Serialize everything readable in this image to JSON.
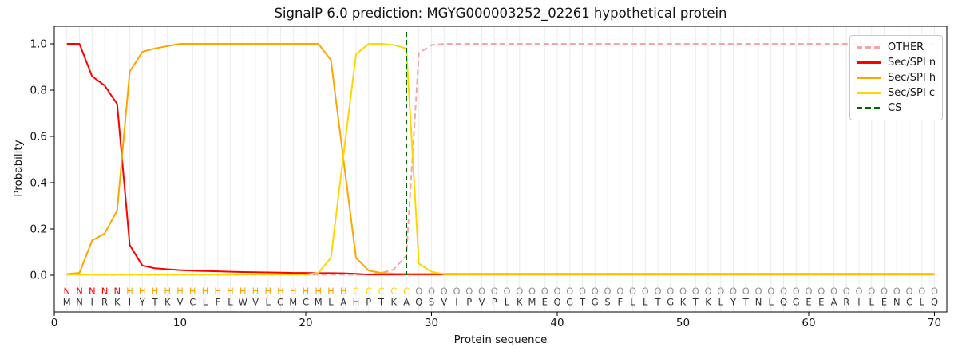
{
  "title": "SignalP 6.0 prediction: MGYG000003252_02261 hypothetical protein",
  "chart_data": {
    "type": "line",
    "title": "SignalP 6.0 prediction: MGYG000003252_02261 hypothetical protein",
    "xlabel": "Protein sequence",
    "ylabel": "Probability",
    "xlim": [
      0,
      71
    ],
    "ylim": [
      -0.16,
      1.08
    ],
    "xticks": [
      0,
      10,
      20,
      30,
      40,
      50,
      60,
      70
    ],
    "yticks": [
      "0.0",
      "0.2",
      "0.4",
      "0.6",
      "0.8",
      "1.0"
    ],
    "grid": "vertical gridline at every residue position",
    "legend_position": "upper-right",
    "sequence": "MNIRKIYTKVCLFLWVLGMCMLAHPTKAQSVIPVPLKMEQGTGSFLLTGKTKLYTNLQGEEARILENCLQ",
    "region_labels": "NNNNNHHHHHHHHHHHHHHHHHHCCCCCOOOOOOOOOOOOOOOOOOOOOOOOOOOOOOOOOOOOOOOOOO",
    "region_colors": {
      "N": "#ff0000",
      "H": "#ffa500",
      "C": "#ffd700",
      "O": "#909090"
    },
    "sequence_color": "#333333",
    "cs_position": 28,
    "series": [
      {
        "name": "OTHER",
        "color": "#f4a6a6",
        "style": "dashed",
        "values": [
          0.002,
          0.002,
          0.002,
          0.002,
          0.002,
          0.002,
          0.002,
          0.002,
          0.002,
          0.002,
          0.002,
          0.002,
          0.002,
          0.002,
          0.002,
          0.002,
          0.002,
          0.002,
          0.002,
          0.002,
          0.002,
          0.002,
          0.002,
          0.002,
          0.004,
          0.01,
          0.025,
          0.085,
          0.96,
          0.995,
          1.0,
          1.0,
          1.0,
          1.0,
          1.0,
          1.0,
          1.0,
          1.0,
          1.0,
          1.0,
          1.0,
          1.0,
          1.0,
          1.0,
          1.0,
          1.0,
          1.0,
          1.0,
          1.0,
          1.0,
          1.0,
          1.0,
          1.0,
          1.0,
          1.0,
          1.0,
          1.0,
          1.0,
          1.0,
          1.0,
          1.0,
          1.0,
          1.0,
          1.0,
          1.0,
          1.0,
          1.0,
          1.0,
          1.0,
          1.0
        ]
      },
      {
        "name": "Sec/SPI n",
        "color": "#ff0000",
        "style": "solid",
        "values": [
          1.0,
          1.0,
          0.86,
          0.82,
          0.74,
          0.13,
          0.042,
          0.03,
          0.026,
          0.022,
          0.02,
          0.018,
          0.017,
          0.015,
          0.014,
          0.013,
          0.012,
          0.011,
          0.01,
          0.01,
          0.009,
          0.009,
          0.008,
          0.006,
          0.003,
          0.003,
          0.003,
          0.003,
          0.003,
          0.003,
          0.003,
          0.003,
          0.003,
          0.003,
          0.003,
          0.003,
          0.003,
          0.003,
          0.003,
          0.003,
          0.003,
          0.003,
          0.003,
          0.003,
          0.003,
          0.003,
          0.003,
          0.003,
          0.003,
          0.003,
          0.003,
          0.003,
          0.003,
          0.003,
          0.003,
          0.003,
          0.003,
          0.003,
          0.003,
          0.003,
          0.003,
          0.003,
          0.003,
          0.003,
          0.003,
          0.003,
          0.003,
          0.003,
          0.003,
          0.003
        ]
      },
      {
        "name": "Sec/SPI h",
        "color": "#ffa500",
        "style": "solid",
        "values": [
          0.005,
          0.01,
          0.15,
          0.18,
          0.28,
          0.88,
          0.965,
          0.98,
          0.99,
          1.0,
          1.0,
          1.0,
          1.0,
          1.0,
          1.0,
          1.0,
          1.0,
          1.0,
          1.0,
          1.0,
          1.0,
          0.93,
          0.5,
          0.075,
          0.02,
          0.01,
          0.007,
          0.006,
          0.006,
          0.006,
          0.006,
          0.006,
          0.006,
          0.006,
          0.006,
          0.006,
          0.006,
          0.006,
          0.006,
          0.006,
          0.006,
          0.006,
          0.006,
          0.006,
          0.006,
          0.006,
          0.006,
          0.006,
          0.006,
          0.006,
          0.006,
          0.006,
          0.006,
          0.006,
          0.006,
          0.006,
          0.006,
          0.006,
          0.006,
          0.006,
          0.006,
          0.006,
          0.006,
          0.006,
          0.006,
          0.006,
          0.006,
          0.006,
          0.006,
          0.006
        ]
      },
      {
        "name": "Sec/SPI c",
        "color": "#ffd700",
        "style": "solid",
        "values": [
          0.003,
          0.003,
          0.003,
          0.003,
          0.003,
          0.003,
          0.003,
          0.003,
          0.003,
          0.003,
          0.003,
          0.003,
          0.003,
          0.003,
          0.003,
          0.003,
          0.003,
          0.003,
          0.003,
          0.003,
          0.01,
          0.075,
          0.52,
          0.955,
          1.0,
          1.0,
          0.995,
          0.98,
          0.05,
          0.015,
          0.004,
          0.004,
          0.004,
          0.004,
          0.004,
          0.004,
          0.004,
          0.004,
          0.004,
          0.004,
          0.004,
          0.004,
          0.004,
          0.004,
          0.004,
          0.004,
          0.004,
          0.004,
          0.004,
          0.004,
          0.004,
          0.004,
          0.004,
          0.004,
          0.004,
          0.004,
          0.004,
          0.004,
          0.004,
          0.004,
          0.004,
          0.004,
          0.004,
          0.004,
          0.004,
          0.004,
          0.004,
          0.004,
          0.004,
          0.004
        ]
      },
      {
        "name": "CS",
        "color": "#006400",
        "style": "dashed-vertical"
      }
    ]
  }
}
